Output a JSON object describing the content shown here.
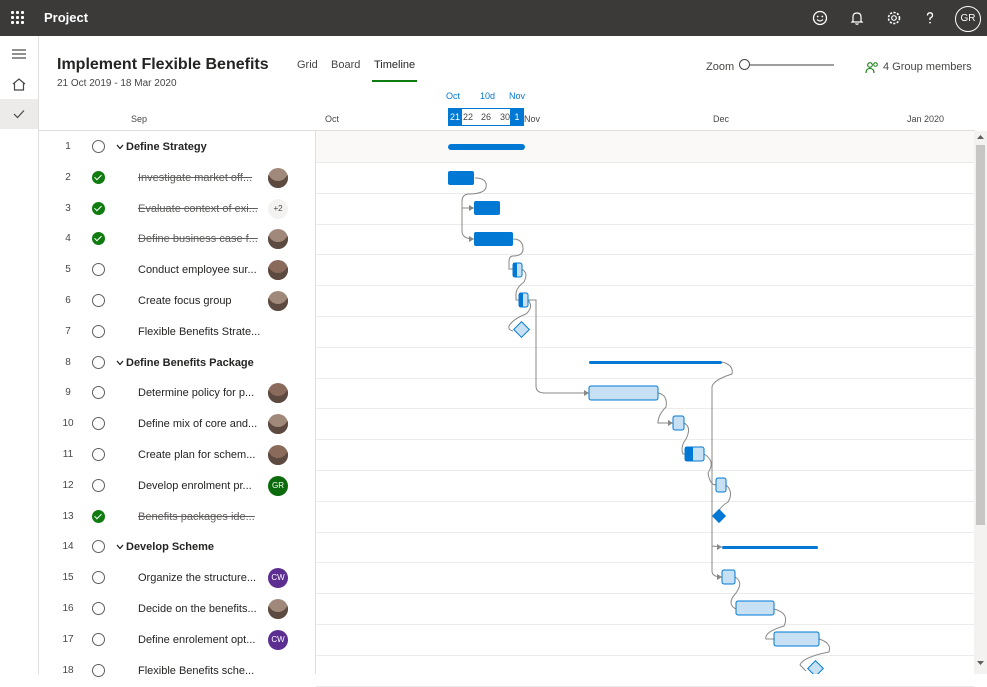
{
  "app": {
    "name": "Project",
    "user_initials": "GR"
  },
  "topbar_icons": [
    "smiley-icon",
    "bell-icon",
    "gear-icon",
    "help-icon"
  ],
  "plan": {
    "title": "Implement Flexible Benefits",
    "dates": "21 Oct 2019 - 18 Mar 2020"
  },
  "tabs": [
    "Grid",
    "Board",
    "Timeline"
  ],
  "active_tab": "Timeline",
  "zoom": {
    "label": "Zoom",
    "level": 0.0
  },
  "members": {
    "label": "4 Group members"
  },
  "timeline": {
    "months": [
      "Sep",
      "Oct",
      "Nov",
      "Dec",
      "Jan 2020"
    ],
    "selection": {
      "top_labels": [
        "Oct",
        "10d",
        "Nov"
      ],
      "days": [
        "21",
        "22",
        "26",
        "30",
        "1"
      ]
    }
  },
  "rows": [
    {
      "num": "1",
      "name": "Define Strategy",
      "group": true,
      "done": false,
      "assignee": ""
    },
    {
      "num": "2",
      "name": "Investigate market off...",
      "group": false,
      "done": true,
      "assignee": "photo"
    },
    {
      "num": "3",
      "name": "Evaluate context of exi...",
      "group": false,
      "done": true,
      "assignee": "+2"
    },
    {
      "num": "4",
      "name": "Define business case f...",
      "group": false,
      "done": true,
      "assignee": "photo"
    },
    {
      "num": "5",
      "name": "Conduct employee sur...",
      "group": false,
      "done": false,
      "assignee": "photo"
    },
    {
      "num": "6",
      "name": "Create focus group",
      "group": false,
      "done": false,
      "assignee": "photo"
    },
    {
      "num": "7",
      "name": "Flexible Benefits Strate...",
      "group": false,
      "done": false,
      "assignee": ""
    },
    {
      "num": "8",
      "name": "Define Benefits Package",
      "group": true,
      "done": false,
      "assignee": ""
    },
    {
      "num": "9",
      "name": "Determine policy for p...",
      "group": false,
      "done": false,
      "assignee": "photo"
    },
    {
      "num": "10",
      "name": "Define mix of core and...",
      "group": false,
      "done": false,
      "assignee": "photo"
    },
    {
      "num": "11",
      "name": "Create plan for schem...",
      "group": false,
      "done": false,
      "assignee": "photo"
    },
    {
      "num": "12",
      "name": "Develop enrolment pr...",
      "group": false,
      "done": false,
      "assignee": "GR"
    },
    {
      "num": "13",
      "name": "Benefits packages ide...",
      "group": false,
      "done": true,
      "assignee": ""
    },
    {
      "num": "14",
      "name": "Develop Scheme",
      "group": true,
      "done": false,
      "assignee": ""
    },
    {
      "num": "15",
      "name": "Organize the structure...",
      "group": false,
      "done": false,
      "assignee": "CW"
    },
    {
      "num": "16",
      "name": "Decide on the benefits...",
      "group": false,
      "done": false,
      "assignee": "photo"
    },
    {
      "num": "17",
      "name": "Define enrolement opt...",
      "group": false,
      "done": false,
      "assignee": "CW"
    },
    {
      "num": "18",
      "name": "Flexible Benefits sche...",
      "group": false,
      "done": false,
      "assignee": ""
    }
  ],
  "colors": {
    "accent": "#0078d4",
    "done": "#107c10",
    "bar_light": "#c7e0f4",
    "topbar": "#3b3a39"
  }
}
